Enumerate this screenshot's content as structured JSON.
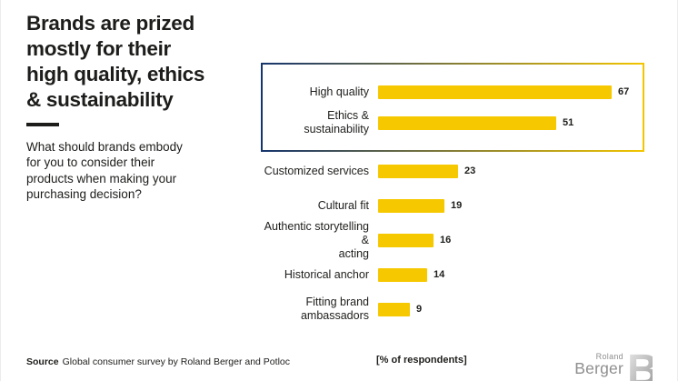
{
  "header": {
    "title": "Brands are prized\nmostly for their\nhigh quality, ethics\n& sustainability",
    "question": "What should brands embody\nfor you to consider their\nproducts when making your\npurchasing decision?"
  },
  "chart_data": {
    "type": "bar",
    "orientation": "horizontal",
    "title": "Brands are prized mostly for their high quality, ethics & sustainability",
    "question": "What should brands embody for you to consider their products when making your purchasing decision?",
    "unit": "[% of respondents]",
    "categories": [
      "High quality",
      "Ethics & sustainability",
      "Customized services",
      "Cultural fit",
      "Authentic storytelling & acting",
      "Historical anchor",
      "Fitting brand ambassadors"
    ],
    "display_labels": [
      "High quality",
      "Ethics & sustainability",
      "Customized services",
      "Cultural fit",
      "Authentic storytelling &\nacting",
      "Historical anchor",
      "Fitting brand\nambassadors"
    ],
    "values": [
      67,
      51,
      23,
      19,
      16,
      14,
      9
    ],
    "value_labels_shown": true,
    "highlighted_categories": [
      "High quality",
      "Ethics & sustainability"
    ],
    "highlighted_count": 2,
    "xlim": [
      0,
      70
    ],
    "grid": false,
    "legend": false,
    "bar_color": "#F6C800",
    "highlight_border_colors": [
      "#16356D",
      "#F2C500"
    ],
    "text_color": "#1D1D1B"
  },
  "footer": {
    "source_label": "Source",
    "source_text": "Global consumer survey by Roland Berger and Potloc",
    "axis_note": "[% of respondents]",
    "logo": {
      "top": "Roland",
      "bottom": "Berger",
      "monogram": "B"
    }
  }
}
